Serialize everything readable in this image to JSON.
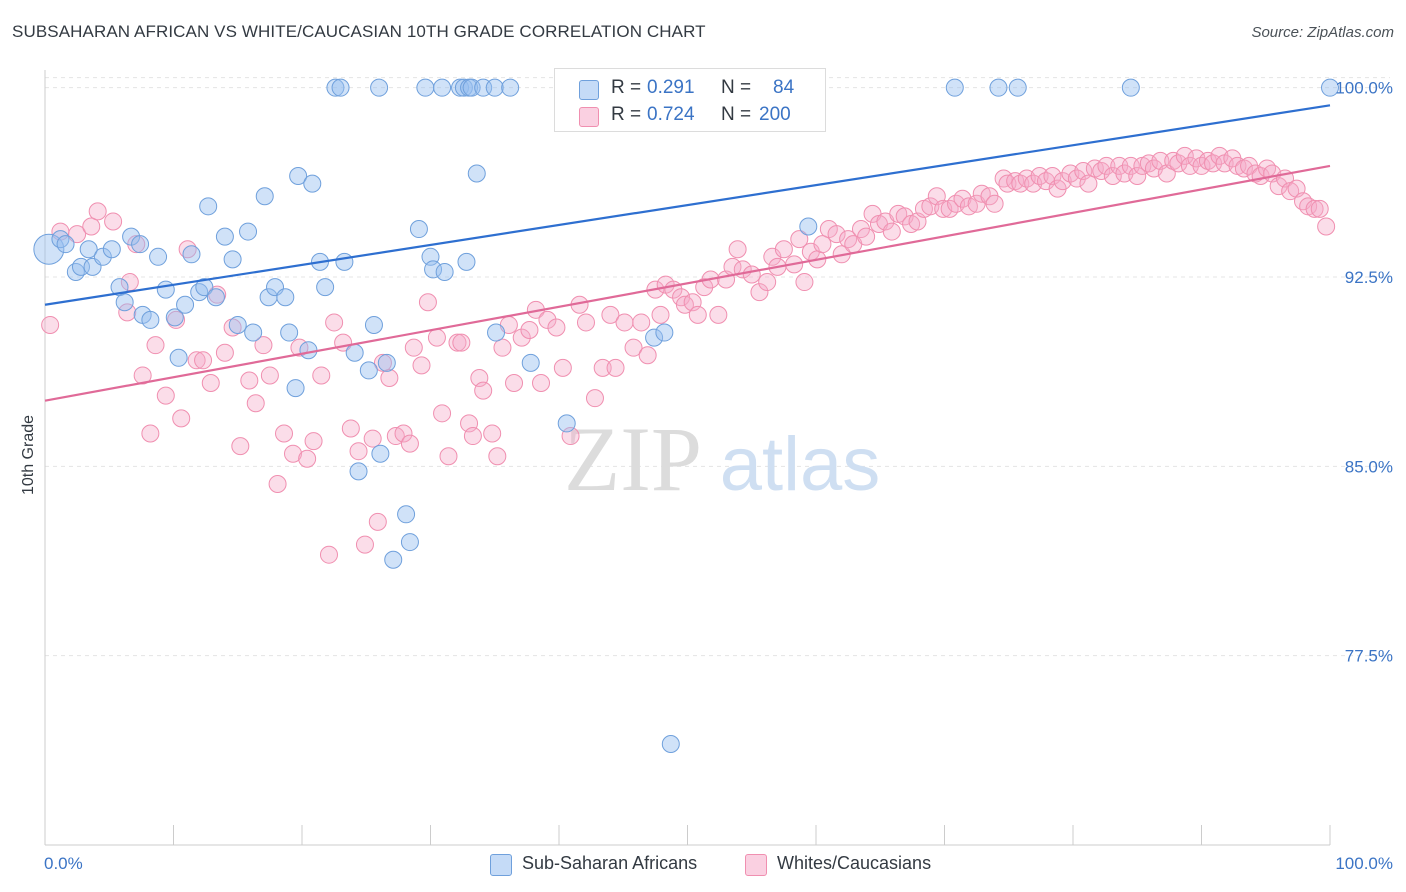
{
  "title": "SUBSAHARAN AFRICAN VS WHITE/CAUCASIAN 10TH GRADE CORRELATION CHART",
  "source": "Source: ZipAtlas.com",
  "watermark": {
    "zip": "ZIP",
    "atlas": "atlas"
  },
  "colors": {
    "blue": "#6fa0dc",
    "blue_fill": "rgba(150,190,240,0.45)",
    "blue_line": "#2e6fd0",
    "pink": "#f08fb0",
    "pink_fill": "rgba(245,170,200,0.40)",
    "pink_line": "#e06a98",
    "axis_text": "#3b74c5"
  },
  "legend": {
    "rows": [
      {
        "r_label": "R =",
        "r_value": "0.291",
        "n_label": "N =",
        "n_value": "84"
      },
      {
        "r_label": "R =",
        "r_value": "0.724",
        "n_label": "N =",
        "n_value": "200"
      }
    ]
  },
  "bottom_legend": [
    "Sub-Saharan Africans",
    "Whites/Caucasians"
  ],
  "chart_data": {
    "type": "scatter",
    "title": "SUBSAHARAN AFRICAN VS WHITE/CAUCASIAN 10TH GRADE CORRELATION CHART",
    "xlabel": "",
    "ylabel": "10th Grade",
    "xlim": [
      0,
      100
    ],
    "ylim": [
      70.0,
      100.7
    ],
    "x_tick_labels": [
      "0.0%",
      "100.0%"
    ],
    "y_ticks": [
      77.5,
      85.0,
      92.5,
      100.0
    ],
    "y_tick_labels": [
      "77.5%",
      "85.0%",
      "92.5%",
      "100.0%"
    ],
    "grid": true,
    "legend_position": "top-center",
    "series": [
      {
        "name": "Sub-Saharan Africans",
        "r": 0.291,
        "n": 84,
        "trend": {
          "x": [
            0,
            100
          ],
          "y": [
            91.4,
            99.3
          ]
        },
        "points": [
          [
            0.3,
            93.6
          ],
          [
            1.2,
            94.0
          ],
          [
            1.6,
            93.8
          ],
          [
            2.4,
            92.7
          ],
          [
            2.8,
            92.9
          ],
          [
            3.4,
            93.6
          ],
          [
            3.7,
            92.9
          ],
          [
            4.5,
            93.3
          ],
          [
            5.2,
            93.6
          ],
          [
            5.8,
            92.1
          ],
          [
            6.2,
            91.5
          ],
          [
            6.7,
            94.1
          ],
          [
            7.4,
            93.8
          ],
          [
            7.6,
            91.0
          ],
          [
            8.2,
            90.8
          ],
          [
            8.8,
            93.3
          ],
          [
            9.4,
            92.0
          ],
          [
            10.1,
            90.9
          ],
          [
            10.4,
            89.3
          ],
          [
            10.9,
            91.4
          ],
          [
            11.4,
            93.4
          ],
          [
            12.0,
            91.9
          ],
          [
            12.4,
            92.1
          ],
          [
            12.7,
            95.3
          ],
          [
            13.3,
            91.7
          ],
          [
            14.0,
            94.1
          ],
          [
            14.6,
            93.2
          ],
          [
            15.0,
            90.6
          ],
          [
            15.8,
            94.3
          ],
          [
            16.2,
            90.3
          ],
          [
            17.1,
            95.7
          ],
          [
            17.4,
            91.7
          ],
          [
            17.9,
            92.1
          ],
          [
            18.7,
            91.7
          ],
          [
            19.0,
            90.3
          ],
          [
            19.5,
            88.1
          ],
          [
            19.7,
            96.5
          ],
          [
            20.8,
            96.2
          ],
          [
            20.5,
            89.6
          ],
          [
            21.4,
            93.1
          ],
          [
            21.8,
            92.1
          ],
          [
            22.6,
            100.0
          ],
          [
            23.3,
            93.1
          ],
          [
            23.0,
            100.0
          ],
          [
            24.1,
            89.5
          ],
          [
            24.4,
            84.8
          ],
          [
            25.2,
            88.8
          ],
          [
            25.6,
            90.6
          ],
          [
            26.1,
            85.5
          ],
          [
            26.6,
            89.1
          ],
          [
            26.0,
            100.0
          ],
          [
            27.1,
            81.3
          ],
          [
            28.1,
            83.1
          ],
          [
            28.4,
            82.0
          ],
          [
            29.1,
            94.4
          ],
          [
            29.6,
            100.0
          ],
          [
            30.0,
            93.3
          ],
          [
            30.2,
            92.8
          ],
          [
            30.9,
            100.0
          ],
          [
            31.1,
            92.7
          ],
          [
            32.3,
            100.0
          ],
          [
            32.6,
            100.0
          ],
          [
            32.8,
            93.1
          ],
          [
            33.0,
            100.0
          ],
          [
            33.2,
            100.0
          ],
          [
            33.6,
            96.6
          ],
          [
            34.1,
            100.0
          ],
          [
            35.0,
            100.0
          ],
          [
            35.1,
            90.3
          ],
          [
            36.2,
            100.0
          ],
          [
            37.8,
            89.1
          ],
          [
            40.6,
            86.7
          ],
          [
            43.3,
            100.0
          ],
          [
            47.4,
            90.1
          ],
          [
            48.2,
            90.3
          ],
          [
            48.7,
            74.0
          ],
          [
            50.5,
            100.0
          ],
          [
            57.1,
            100.0
          ],
          [
            59.4,
            94.5
          ],
          [
            70.8,
            100.0
          ],
          [
            74.2,
            100.0
          ],
          [
            75.7,
            100.0
          ],
          [
            84.5,
            100.0
          ],
          [
            100.0,
            100.0
          ]
        ]
      },
      {
        "name": "Whites/Caucasians",
        "r": 0.724,
        "n": 200,
        "trend": {
          "x": [
            0,
            100
          ],
          "y": [
            87.6,
            96.9
          ]
        },
        "points": [
          [
            0.4,
            90.6
          ],
          [
            1.2,
            94.3
          ],
          [
            2.5,
            94.2
          ],
          [
            3.6,
            94.5
          ],
          [
            4.1,
            95.1
          ],
          [
            5.3,
            94.7
          ],
          [
            6.4,
            91.1
          ],
          [
            6.6,
            92.3
          ],
          [
            7.1,
            93.8
          ],
          [
            7.6,
            88.6
          ],
          [
            8.2,
            86.3
          ],
          [
            8.6,
            89.8
          ],
          [
            9.4,
            87.8
          ],
          [
            10.2,
            90.8
          ],
          [
            10.6,
            86.9
          ],
          [
            11.1,
            93.6
          ],
          [
            11.8,
            89.2
          ],
          [
            12.3,
            89.2
          ],
          [
            12.9,
            88.3
          ],
          [
            13.4,
            91.8
          ],
          [
            14.0,
            89.5
          ],
          [
            14.6,
            90.5
          ],
          [
            15.2,
            85.8
          ],
          [
            15.9,
            88.4
          ],
          [
            16.4,
            87.5
          ],
          [
            17.0,
            89.8
          ],
          [
            17.5,
            88.6
          ],
          [
            18.1,
            84.3
          ],
          [
            18.6,
            86.3
          ],
          [
            19.3,
            85.5
          ],
          [
            19.8,
            89.7
          ],
          [
            20.4,
            85.3
          ],
          [
            20.9,
            86.0
          ],
          [
            21.5,
            88.6
          ],
          [
            22.1,
            81.5
          ],
          [
            22.5,
            90.7
          ],
          [
            23.2,
            89.9
          ],
          [
            23.8,
            86.5
          ],
          [
            24.4,
            85.6
          ],
          [
            24.9,
            81.9
          ],
          [
            25.5,
            86.1
          ],
          [
            25.9,
            82.8
          ],
          [
            26.3,
            89.1
          ],
          [
            26.8,
            88.5
          ],
          [
            27.3,
            86.2
          ],
          [
            27.9,
            86.3
          ],
          [
            28.4,
            85.9
          ],
          [
            28.7,
            89.7
          ],
          [
            29.3,
            89.0
          ],
          [
            29.8,
            91.5
          ],
          [
            30.5,
            90.1
          ],
          [
            30.9,
            87.1
          ],
          [
            31.4,
            85.4
          ],
          [
            32.1,
            89.9
          ],
          [
            32.4,
            89.9
          ],
          [
            33.0,
            86.7
          ],
          [
            33.3,
            86.2
          ],
          [
            33.8,
            88.5
          ],
          [
            34.1,
            88.0
          ],
          [
            34.8,
            86.3
          ],
          [
            35.2,
            85.4
          ],
          [
            35.6,
            89.7
          ],
          [
            36.1,
            90.6
          ],
          [
            36.5,
            88.3
          ],
          [
            37.1,
            90.1
          ],
          [
            37.7,
            90.4
          ],
          [
            38.2,
            91.2
          ],
          [
            38.6,
            88.3
          ],
          [
            39.1,
            90.8
          ],
          [
            39.8,
            90.5
          ],
          [
            40.3,
            88.9
          ],
          [
            40.9,
            86.2
          ],
          [
            41.6,
            91.4
          ],
          [
            42.1,
            90.7
          ],
          [
            42.8,
            87.7
          ],
          [
            43.4,
            88.9
          ],
          [
            44.0,
            91.0
          ],
          [
            44.4,
            88.9
          ],
          [
            45.1,
            90.7
          ],
          [
            45.8,
            89.7
          ],
          [
            46.4,
            90.7
          ],
          [
            46.9,
            89.4
          ],
          [
            47.5,
            92.0
          ],
          [
            47.9,
            91.0
          ],
          [
            48.3,
            92.2
          ],
          [
            48.9,
            92.0
          ],
          [
            49.5,
            91.7
          ],
          [
            49.8,
            91.4
          ],
          [
            50.4,
            91.5
          ],
          [
            50.8,
            91.0
          ],
          [
            51.3,
            92.1
          ],
          [
            51.8,
            92.4
          ],
          [
            52.4,
            91.0
          ],
          [
            53.0,
            92.4
          ],
          [
            53.5,
            92.9
          ],
          [
            53.9,
            93.6
          ],
          [
            54.3,
            92.8
          ],
          [
            55.0,
            92.6
          ],
          [
            55.6,
            91.9
          ],
          [
            56.2,
            92.3
          ],
          [
            56.6,
            93.3
          ],
          [
            57.0,
            92.9
          ],
          [
            57.5,
            93.6
          ],
          [
            58.3,
            93.0
          ],
          [
            58.7,
            94.0
          ],
          [
            59.1,
            92.3
          ],
          [
            59.6,
            93.5
          ],
          [
            60.1,
            93.2
          ],
          [
            60.5,
            93.8
          ],
          [
            61.0,
            94.4
          ],
          [
            61.6,
            94.2
          ],
          [
            62.0,
            93.4
          ],
          [
            62.5,
            94.0
          ],
          [
            62.9,
            93.8
          ],
          [
            63.5,
            94.4
          ],
          [
            63.9,
            94.1
          ],
          [
            64.4,
            95.0
          ],
          [
            64.9,
            94.6
          ],
          [
            65.4,
            94.7
          ],
          [
            65.9,
            94.3
          ],
          [
            66.4,
            95.0
          ],
          [
            66.9,
            94.9
          ],
          [
            67.4,
            94.6
          ],
          [
            67.9,
            94.7
          ],
          [
            68.4,
            95.2
          ],
          [
            68.9,
            95.3
          ],
          [
            69.4,
            95.7
          ],
          [
            69.9,
            95.2
          ],
          [
            70.4,
            95.2
          ],
          [
            70.9,
            95.4
          ],
          [
            71.4,
            95.6
          ],
          [
            71.9,
            95.3
          ],
          [
            72.5,
            95.4
          ],
          [
            72.9,
            95.8
          ],
          [
            73.5,
            95.7
          ],
          [
            73.9,
            95.4
          ],
          [
            74.6,
            96.4
          ],
          [
            74.9,
            96.2
          ],
          [
            75.5,
            96.3
          ],
          [
            75.9,
            96.2
          ],
          [
            76.4,
            96.4
          ],
          [
            76.9,
            96.2
          ],
          [
            77.4,
            96.5
          ],
          [
            77.9,
            96.3
          ],
          [
            78.4,
            96.5
          ],
          [
            78.8,
            96.0
          ],
          [
            79.2,
            96.3
          ],
          [
            79.8,
            96.6
          ],
          [
            80.3,
            96.4
          ],
          [
            80.8,
            96.7
          ],
          [
            81.2,
            96.2
          ],
          [
            81.7,
            96.8
          ],
          [
            82.2,
            96.7
          ],
          [
            82.6,
            96.9
          ],
          [
            83.1,
            96.5
          ],
          [
            83.6,
            96.9
          ],
          [
            84.0,
            96.6
          ],
          [
            84.5,
            96.9
          ],
          [
            85.0,
            96.5
          ],
          [
            85.4,
            96.9
          ],
          [
            85.9,
            97.0
          ],
          [
            86.3,
            96.8
          ],
          [
            86.8,
            97.1
          ],
          [
            87.3,
            96.6
          ],
          [
            87.8,
            97.1
          ],
          [
            88.2,
            97.0
          ],
          [
            88.7,
            97.3
          ],
          [
            89.1,
            96.9
          ],
          [
            89.6,
            97.2
          ],
          [
            90.0,
            96.9
          ],
          [
            90.5,
            97.1
          ],
          [
            90.9,
            97.0
          ],
          [
            91.4,
            97.3
          ],
          [
            91.8,
            97.0
          ],
          [
            92.4,
            97.2
          ],
          [
            92.8,
            96.9
          ],
          [
            93.3,
            96.8
          ],
          [
            93.7,
            96.9
          ],
          [
            94.2,
            96.6
          ],
          [
            94.6,
            96.5
          ],
          [
            95.1,
            96.8
          ],
          [
            95.5,
            96.6
          ],
          [
            96.0,
            96.1
          ],
          [
            96.5,
            96.4
          ],
          [
            96.9,
            95.9
          ],
          [
            97.4,
            96.0
          ],
          [
            97.9,
            95.5
          ],
          [
            98.3,
            95.3
          ],
          [
            98.8,
            95.2
          ],
          [
            99.2,
            95.2
          ],
          [
            99.7,
            94.5
          ]
        ]
      }
    ]
  }
}
